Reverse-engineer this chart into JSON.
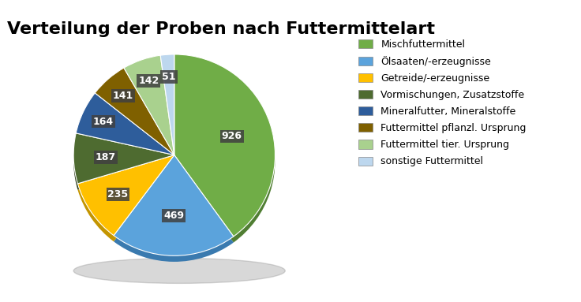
{
  "title": "Verteilung der Proben nach Futtermittelart",
  "labels": [
    "Mischfuttermittel",
    "Ölsaaten/-erzeugnisse",
    "Getreide/-erzeugnisse",
    "Vormischungen, Zusatzstoffe",
    "Mineralfutter, Mineralstoffe",
    "Futtermittel pflanzl. Ursprung",
    "Futtermittel tier. Ursprung",
    "sonstige Futtermittel"
  ],
  "values": [
    926,
    469,
    235,
    187,
    164,
    141,
    142,
    51
  ],
  "colors": [
    "#70AD47",
    "#5BA3DC",
    "#FFC000",
    "#4E6B30",
    "#2E5D9B",
    "#7F6000",
    "#A9D18E",
    "#BDD7EE"
  ],
  "dark_colors": [
    "#507E33",
    "#3A7AAF",
    "#C49500",
    "#2E3F1C",
    "#1A3B6A",
    "#5A4400",
    "#7AAF60",
    "#8DAFC0"
  ],
  "startangle": 90,
  "title_fontsize": 16,
  "label_fontsize": 9,
  "legend_fontsize": 9,
  "background_color": "#ffffff",
  "label_bg_color": "#404040"
}
